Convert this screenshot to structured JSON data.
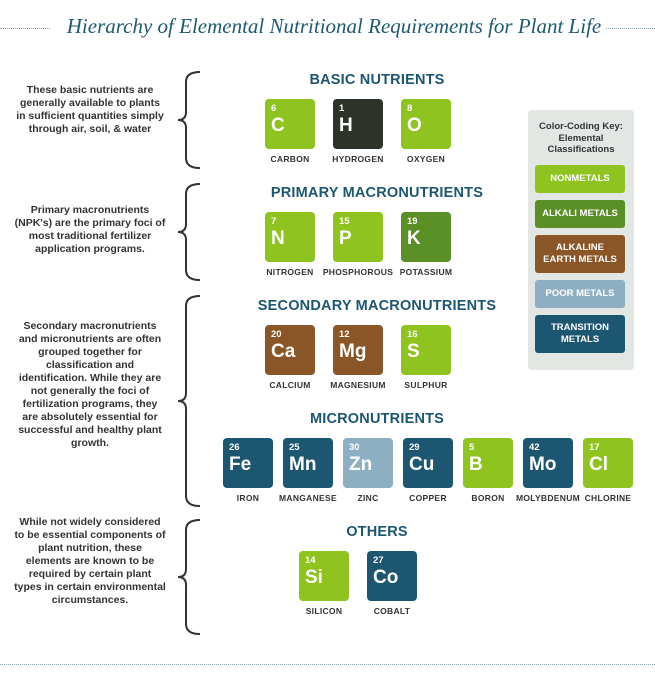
{
  "title": "Hierarchy of Elemental Nutritional Requirements for Plant Life",
  "colors": {
    "nonmetals": "#8fc31f",
    "alkali_metals": "#5a8f25",
    "alkaline_earth_metals": "#8a5527",
    "poor_metals": "#8eafc1",
    "transition_metals": "#1d5670",
    "hydrogen": "#2d3328",
    "key_background": "#e3e7e4",
    "heading": "#1d5670"
  },
  "notes": {
    "basic": "These basic nutrients are generally available to plants in sufficient quantities simply through air, soil, & water",
    "primary": "Primary macronutrients (NPK's) are the primary foci of most traditional fertilizer application programs.",
    "secondary_micro": "Secondary macronutrients and micronutrients are often grouped together for classification and identification. While they are not generally the foci of fertilization programs, they are absolutely essential for successful and healthy plant growth.",
    "others": "While not widely considered to be essential components of plant nutrition, these elements are known to be required by certain plant types in certain environmental circumstances."
  },
  "sections": {
    "basic": {
      "title": "BASIC NUTRIENTS",
      "elements": [
        {
          "number": "6",
          "symbol": "C",
          "name": "CARBON",
          "class": "nonmetals"
        },
        {
          "number": "1",
          "symbol": "H",
          "name": "HYDROGEN",
          "class": "hydrogen"
        },
        {
          "number": "8",
          "symbol": "O",
          "name": "OXYGEN",
          "class": "nonmetals"
        }
      ]
    },
    "primary": {
      "title": "PRIMARY MACRONUTRIENTS",
      "elements": [
        {
          "number": "7",
          "symbol": "N",
          "name": "NITROGEN",
          "class": "nonmetals"
        },
        {
          "number": "15",
          "symbol": "P",
          "name": "PHOSPHOROUS",
          "class": "nonmetals"
        },
        {
          "number": "19",
          "symbol": "K",
          "name": "POTASSIUM",
          "class": "alkali_metals"
        }
      ]
    },
    "secondary": {
      "title": "SECONDARY MACRONUTRIENTS",
      "elements": [
        {
          "number": "20",
          "symbol": "Ca",
          "name": "CALCIUM",
          "class": "alkaline_earth_metals"
        },
        {
          "number": "12",
          "symbol": "Mg",
          "name": "MAGNESIUM",
          "class": "alkaline_earth_metals"
        },
        {
          "number": "16",
          "symbol": "S",
          "name": "SULPHUR",
          "class": "nonmetals"
        }
      ]
    },
    "micro": {
      "title": "MICRONUTRIENTS",
      "elements": [
        {
          "number": "26",
          "symbol": "Fe",
          "name": "IRON",
          "class": "transition_metals"
        },
        {
          "number": "25",
          "symbol": "Mn",
          "name": "MANGANESE",
          "class": "transition_metals"
        },
        {
          "number": "30",
          "symbol": "Zn",
          "name": "ZINC",
          "class": "poor_metals"
        },
        {
          "number": "29",
          "symbol": "Cu",
          "name": "COPPER",
          "class": "transition_metals"
        },
        {
          "number": "5",
          "symbol": "B",
          "name": "BORON",
          "class": "nonmetals"
        },
        {
          "number": "42",
          "symbol": "Mo",
          "name": "MOLYBDENUM",
          "class": "transition_metals"
        },
        {
          "number": "17",
          "symbol": "Cl",
          "name": "CHLORINE",
          "class": "nonmetals"
        }
      ]
    },
    "others": {
      "title": "OTHERS",
      "elements": [
        {
          "number": "14",
          "symbol": "Si",
          "name": "SILICON",
          "class": "nonmetals"
        },
        {
          "number": "27",
          "symbol": "Co",
          "name": "COBALT",
          "class": "transition_metals"
        }
      ]
    }
  },
  "key": {
    "title": "Color-Coding Key: Elemental Classifications",
    "items": [
      {
        "label": "NONMETALS",
        "class": "nonmetals"
      },
      {
        "label": "ALKALI METALS",
        "class": "alkali_metals"
      },
      {
        "label": "ALKALINE EARTH METALS",
        "class": "alkaline_earth_metals"
      },
      {
        "label": "POOR METALS",
        "class": "poor_metals"
      },
      {
        "label": "TRANSITION METALS",
        "class": "transition_metals"
      }
    ]
  }
}
